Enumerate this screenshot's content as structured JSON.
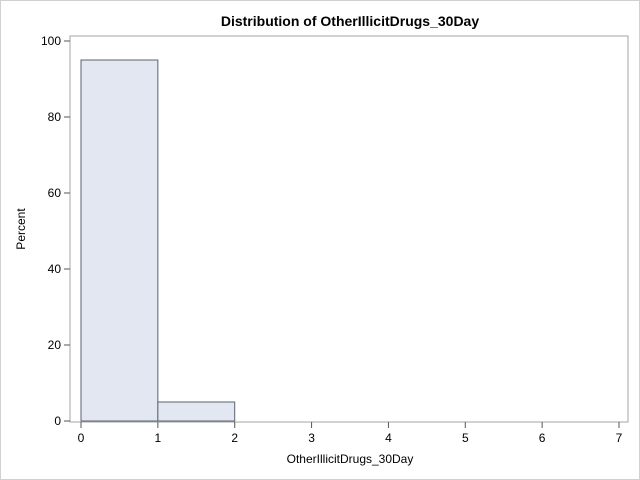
{
  "chart_data": {
    "type": "bar",
    "title": "Distribution of OtherIllicitDrugs_30Day",
    "xlabel": "OtherIllicitDrugs_30Day",
    "ylabel": "Percent",
    "bins": [
      {
        "start": 0,
        "end": 1,
        "value": 95
      },
      {
        "start": 1,
        "end": 2,
        "value": 5
      }
    ],
    "xlim": [
      0,
      7
    ],
    "ylim": [
      0,
      100
    ],
    "xticks": [
      "0",
      "1",
      "2",
      "3",
      "4",
      "5",
      "6",
      "7"
    ],
    "yticks": [
      "0",
      "20",
      "40",
      "60",
      "80",
      "100"
    ],
    "grid": false,
    "colors": {
      "bar_fill": "#e3e7f1",
      "bar_stroke": "#5c6270",
      "frame": "#a6a6a6"
    }
  }
}
